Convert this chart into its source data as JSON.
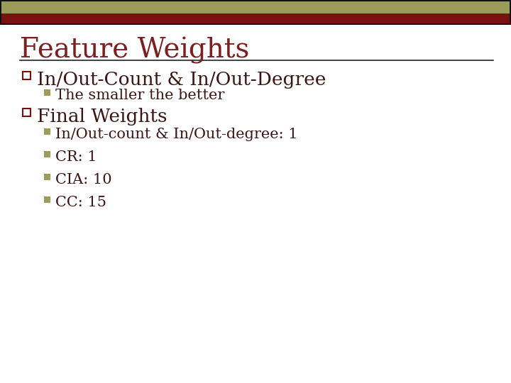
{
  "title": "Feature Weights",
  "title_color": "#7B2020",
  "title_fontsize": 28,
  "background_color": "#FFFFFF",
  "header_olive_color": "#9B9B5A",
  "header_red_color": "#7B1010",
  "header_border_color": "#111111",
  "accent_olive_color": "#9B9B5A",
  "bullet1_text": "In/Out-Count & In/Out-Degree",
  "bullet1_fontsize": 19,
  "sub_bullet1_text": "The smaller the better",
  "sub_bullet_fontsize": 15,
  "bullet2_text": "Final Weights",
  "bullet2_fontsize": 19,
  "sub_bullets2": [
    "In/Out-count & In/Out-degree: 1",
    "CR: 1",
    "CIA: 10",
    "CC: 15"
  ],
  "sub_bullet2_fontsize": 15,
  "open_square_edge_color": "#7B1010",
  "filled_square_color": "#9B9B5A",
  "line_color": "#222222",
  "text_color": "#3B1515"
}
